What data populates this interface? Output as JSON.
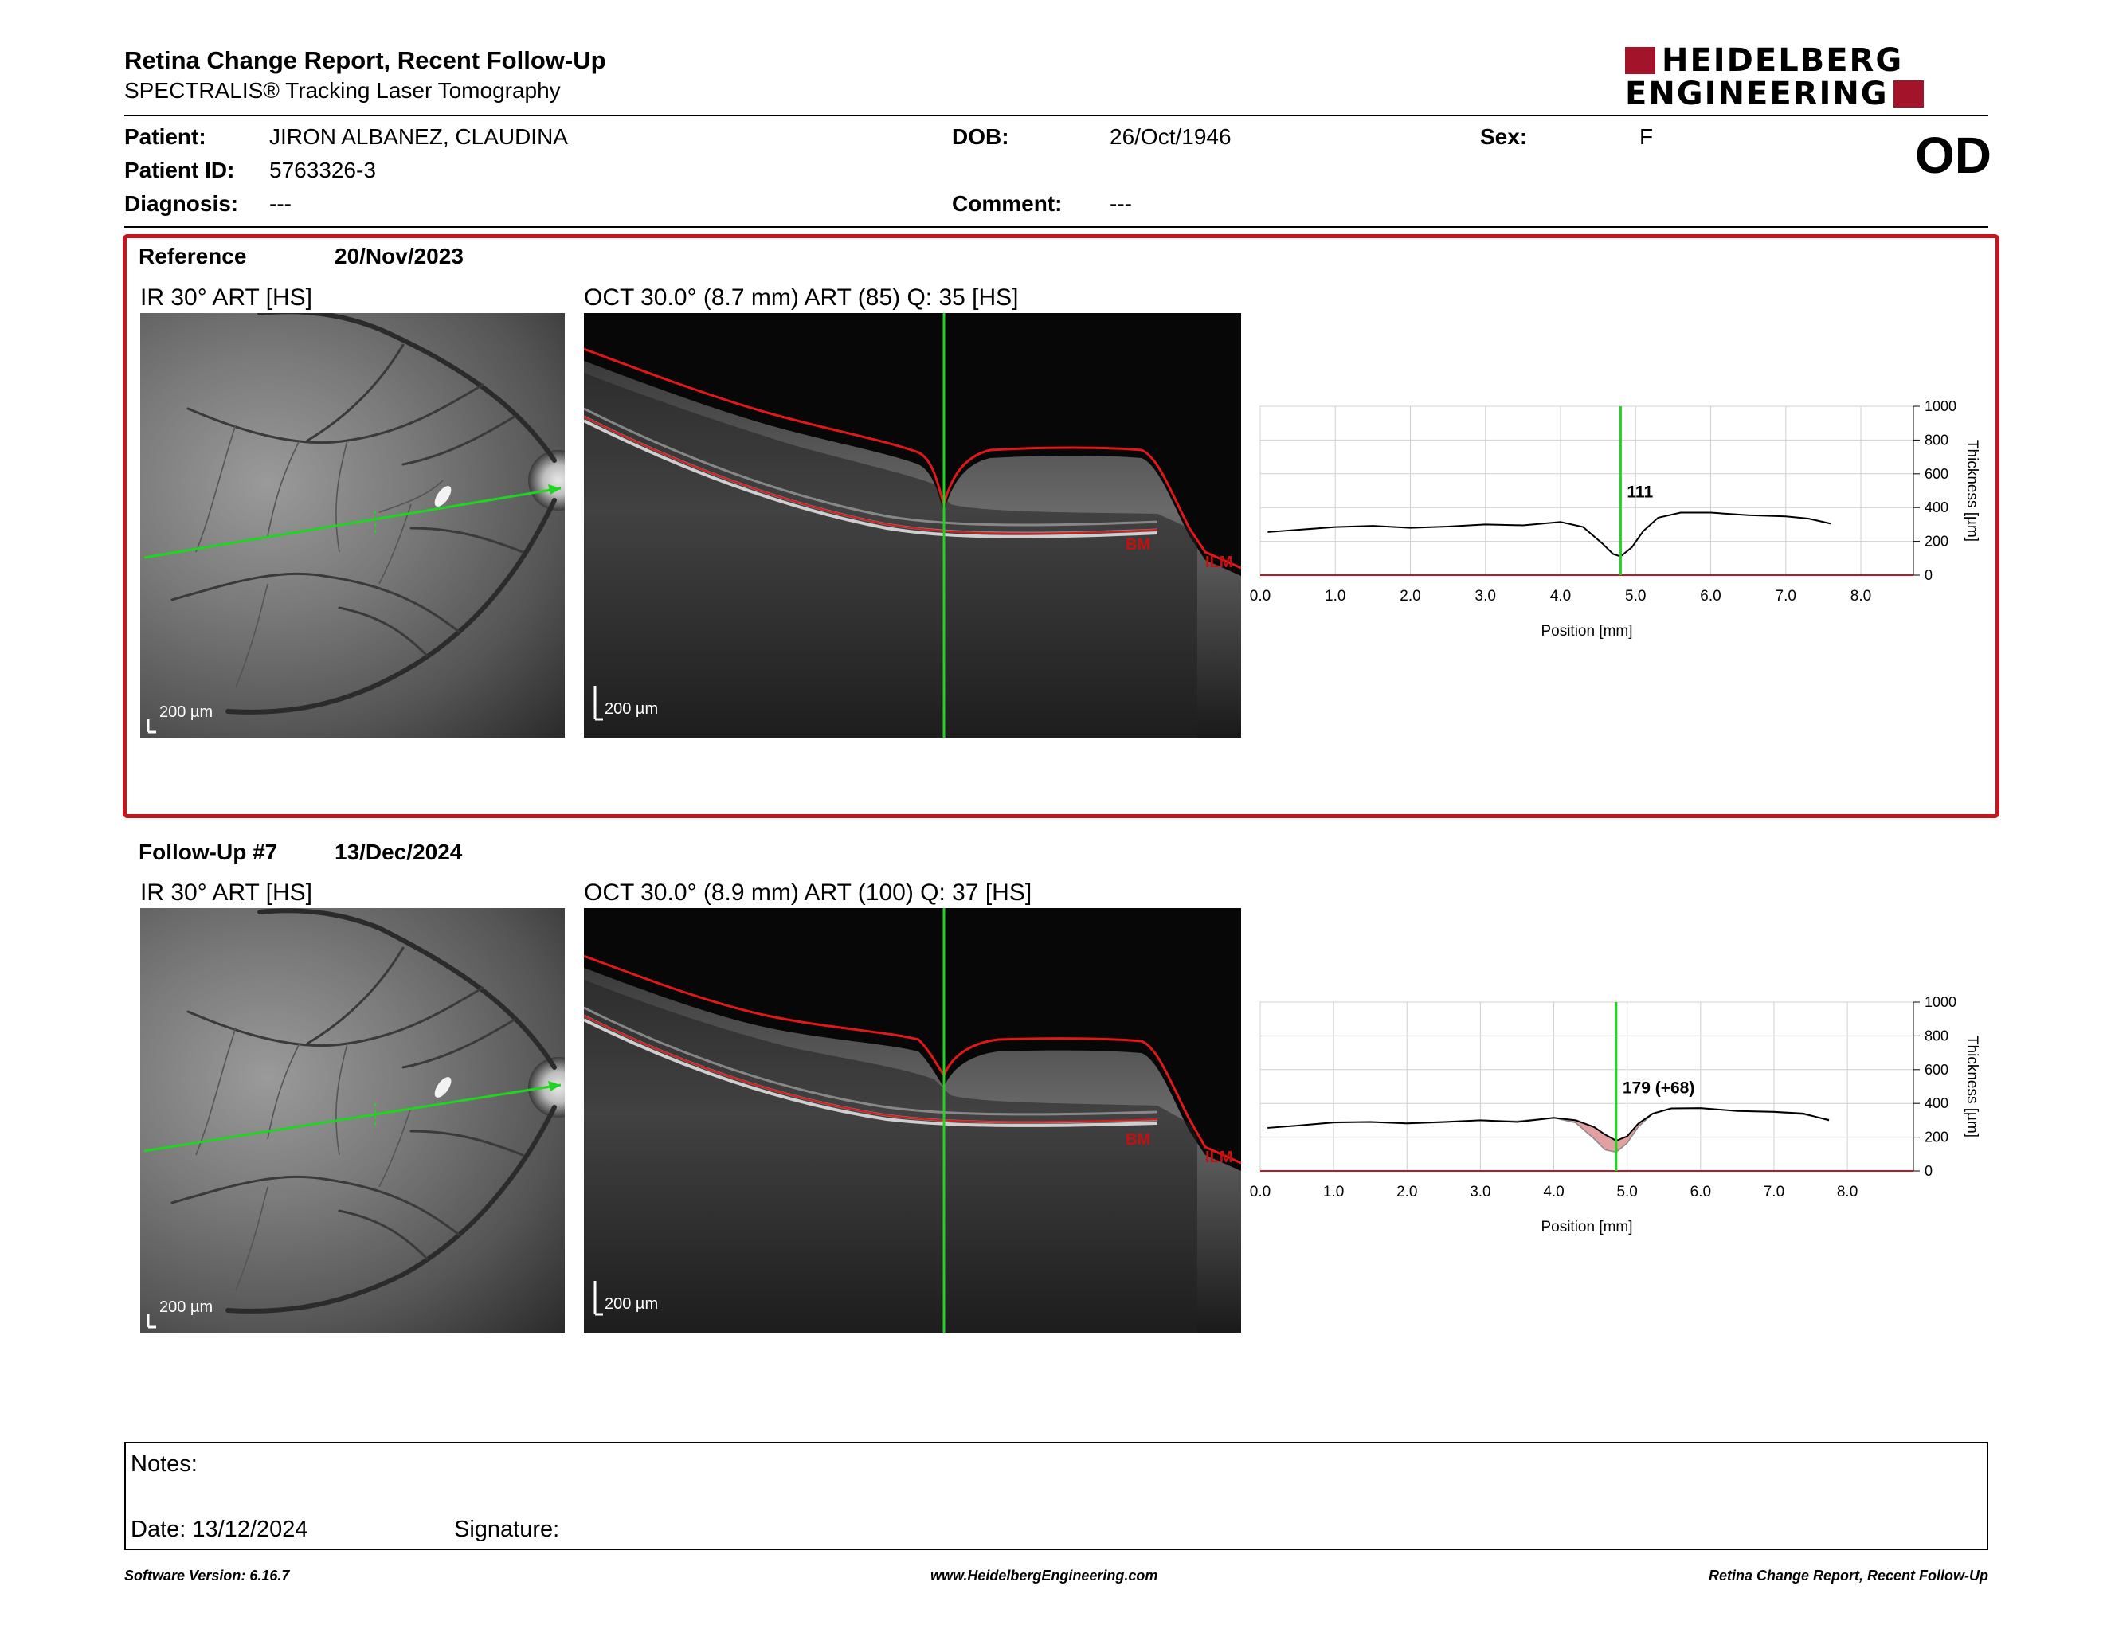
{
  "header": {
    "title": "Retina Change Report, Recent Follow-Up",
    "subtitle": "SPECTRALIS® Tracking Laser Tomography",
    "logo_line1": "HEIDELBERG",
    "logo_line2": "ENGINEERING",
    "eye": "OD"
  },
  "patient": {
    "patient_label": "Patient:",
    "patient_value": "JIRON ALBANEZ, CLAUDINA",
    "id_label": "Patient ID:",
    "id_value": "5763326-3",
    "diagnosis_label": "Diagnosis:",
    "diagnosis_value": "---",
    "dob_label": "DOB:",
    "dob_value": "26/Oct/1946",
    "comment_label": "Comment:",
    "comment_value": "---",
    "sex_label": "Sex:",
    "sex_value": "F"
  },
  "colors": {
    "accent_red": "#c4161c",
    "logo_red": "#a3142b",
    "scan_line": "#1fd51f",
    "layer_line": "#e01818",
    "change_fill": "#d98080"
  },
  "sections": [
    {
      "label": "Reference",
      "date": "20/Nov/2023",
      "ir_title": "IR 30° ART [HS]",
      "oct_title": "OCT 30.0° (8.7 mm) ART (85) Q: 35 [HS]",
      "scale_ir": "200 µm",
      "scale_oct": "200 µm",
      "label_bm": "BM",
      "label_ilm": "ILM"
    },
    {
      "label": "Follow-Up #7",
      "date": "13/Dec/2024",
      "ir_title": "IR 30° ART [HS]",
      "oct_title": "OCT 30.0° (8.9 mm) ART (100) Q: 37 [HS]",
      "scale_ir": "200 µm",
      "scale_oct": "200 µm",
      "label_bm": "BM",
      "label_ilm": "ILM"
    }
  ],
  "chart_data": [
    {
      "type": "line",
      "xlabel": "Position [mm]",
      "ylabel": "Thickness [µm]",
      "xlim": [
        0,
        8.7
      ],
      "ylim": [
        0,
        1000
      ],
      "x_ticks": [
        "0.0",
        "1.0",
        "2.0",
        "3.0",
        "4.0",
        "5.0",
        "6.0",
        "7.0",
        "8.0"
      ],
      "y_ticks": [
        "0",
        "200",
        "400",
        "600",
        "800",
        "1000"
      ],
      "grid": true,
      "cursor_x": 4.8,
      "cursor_label": "111",
      "x": [
        0.1,
        0.5,
        1.0,
        1.5,
        2.0,
        2.5,
        3.0,
        3.5,
        4.0,
        4.3,
        4.55,
        4.7,
        4.8,
        4.95,
        5.1,
        5.3,
        5.6,
        6.0,
        6.5,
        7.0,
        7.3,
        7.6
      ],
      "y": [
        255,
        268,
        285,
        292,
        280,
        288,
        300,
        295,
        315,
        285,
        190,
        125,
        111,
        165,
        260,
        340,
        370,
        370,
        355,
        348,
        335,
        305
      ]
    },
    {
      "type": "line",
      "xlabel": "Position [mm]",
      "ylabel": "Thickness [µm]",
      "xlim": [
        0,
        8.9
      ],
      "ylim": [
        0,
        1000
      ],
      "x_ticks": [
        "0.0",
        "1.0",
        "2.0",
        "3.0",
        "4.0",
        "5.0",
        "6.0",
        "7.0",
        "8.0"
      ],
      "y_ticks": [
        "0",
        "200",
        "400",
        "600",
        "800",
        "1000"
      ],
      "grid": true,
      "cursor_x": 4.85,
      "cursor_label": "179 (+68)",
      "x": [
        0.1,
        0.5,
        1.0,
        1.5,
        2.0,
        2.5,
        3.0,
        3.5,
        4.0,
        4.3,
        4.55,
        4.7,
        4.85,
        5.0,
        5.15,
        5.35,
        5.6,
        6.0,
        6.5,
        7.0,
        7.4,
        7.75
      ],
      "y": [
        255,
        268,
        288,
        290,
        282,
        290,
        300,
        290,
        315,
        300,
        260,
        215,
        179,
        205,
        280,
        340,
        370,
        372,
        355,
        350,
        340,
        300
      ],
      "reference_y": [
        255,
        268,
        285,
        292,
        280,
        288,
        300,
        295,
        315,
        285,
        190,
        125,
        111,
        165,
        260,
        340,
        370,
        370,
        355,
        348,
        335,
        305
      ]
    }
  ],
  "notes": {
    "notes_label": "Notes:",
    "date_label": "Date: 13/12/2024",
    "signature_label": "Signature:"
  },
  "footer": {
    "software": "Software Version: 6.16.7",
    "website": "www.HeidelbergEngineering.com",
    "report_name": "Retina Change Report, Recent Follow-Up"
  }
}
